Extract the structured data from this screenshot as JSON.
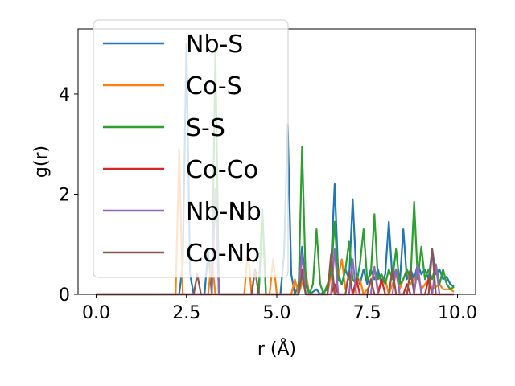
{
  "chart_data": {
    "type": "line",
    "xlabel": "r (Å)",
    "ylabel": "g(r)",
    "xlim": [
      -0.5,
      10.5
    ],
    "ylim": [
      0,
      5.3
    ],
    "xticks": [
      0.0,
      2.5,
      5.0,
      7.5,
      10.0
    ],
    "xtick_labels": [
      "0.0",
      "2.5",
      "5.0",
      "7.5",
      "10.0"
    ],
    "yticks": [
      0,
      2,
      4
    ],
    "ytick_labels": [
      "0",
      "2",
      "4"
    ],
    "grid": false,
    "legend_position": "top-left",
    "series": [
      {
        "name": "Nb-S",
        "color": "#1f77b4",
        "points": [
          [
            0,
            0
          ],
          [
            2.3,
            0
          ],
          [
            2.4,
            0.6
          ],
          [
            2.5,
            5.0
          ],
          [
            2.6,
            0.4
          ],
          [
            2.7,
            0
          ],
          [
            3.0,
            0
          ],
          [
            3.1,
            0.9
          ],
          [
            3.2,
            0
          ],
          [
            3.3,
            2.1
          ],
          [
            3.4,
            0
          ],
          [
            4.3,
            0
          ],
          [
            4.4,
            0.5
          ],
          [
            4.5,
            0
          ],
          [
            4.6,
            1.7
          ],
          [
            4.7,
            0
          ],
          [
            5.1,
            0
          ],
          [
            5.2,
            0.8
          ],
          [
            5.3,
            3.4
          ],
          [
            5.4,
            0.4
          ],
          [
            5.5,
            0
          ],
          [
            5.6,
            0.2
          ],
          [
            5.7,
            0.95
          ],
          [
            5.8,
            0.2
          ],
          [
            5.9,
            0
          ],
          [
            6.1,
            0.1
          ],
          [
            6.2,
            0
          ],
          [
            6.4,
            0.1
          ],
          [
            6.5,
            0.6
          ],
          [
            6.6,
            2.2
          ],
          [
            6.7,
            0.4
          ],
          [
            6.8,
            0.2
          ],
          [
            6.9,
            0.5
          ],
          [
            7.0,
            0.3
          ],
          [
            7.1,
            1.9
          ],
          [
            7.2,
            0.4
          ],
          [
            7.3,
            0.2
          ],
          [
            7.4,
            0.5
          ],
          [
            7.5,
            0.2
          ],
          [
            7.6,
            0.5
          ],
          [
            7.7,
            0.3
          ],
          [
            7.8,
            0.5
          ],
          [
            7.9,
            0.2
          ],
          [
            8.0,
            0.4
          ],
          [
            8.1,
            1.45
          ],
          [
            8.2,
            0.3
          ],
          [
            8.3,
            0.5
          ],
          [
            8.4,
            0.2
          ],
          [
            8.5,
            1.3
          ],
          [
            8.6,
            0.3
          ],
          [
            8.7,
            0.5
          ],
          [
            8.8,
            0.3
          ],
          [
            8.9,
            0.6
          ],
          [
            9.0,
            0.4
          ],
          [
            9.1,
            0.5
          ],
          [
            9.2,
            0.3
          ],
          [
            9.3,
            0.9
          ],
          [
            9.4,
            0.4
          ],
          [
            9.5,
            0.5
          ],
          [
            9.6,
            0.3
          ],
          [
            9.7,
            0.35
          ],
          [
            9.8,
            0.2
          ],
          [
            9.9,
            0.15
          ]
        ]
      },
      {
        "name": "Co-S",
        "color": "#ff7f0e",
        "points": [
          [
            0,
            0
          ],
          [
            2.2,
            0
          ],
          [
            2.3,
            2.9
          ],
          [
            2.4,
            0
          ],
          [
            3.1,
            0
          ],
          [
            3.2,
            0.7
          ],
          [
            3.3,
            0
          ],
          [
            4.1,
            0
          ],
          [
            4.2,
            0.9
          ],
          [
            4.3,
            0
          ],
          [
            4.8,
            0
          ],
          [
            4.9,
            0.7
          ],
          [
            5.0,
            0
          ],
          [
            5.4,
            0
          ],
          [
            5.5,
            0.3
          ],
          [
            5.6,
            0
          ],
          [
            5.8,
            0.45
          ],
          [
            5.9,
            0
          ],
          [
            6.4,
            0
          ],
          [
            6.5,
            0.4
          ],
          [
            6.6,
            0
          ],
          [
            6.8,
            0.7
          ],
          [
            6.9,
            0.1
          ],
          [
            7.0,
            0.4
          ],
          [
            7.1,
            0
          ],
          [
            7.3,
            0.3
          ],
          [
            7.4,
            0
          ],
          [
            7.6,
            0.2
          ],
          [
            7.7,
            0.5
          ],
          [
            7.8,
            0.1
          ],
          [
            8.0,
            0.3
          ],
          [
            8.1,
            0
          ],
          [
            8.3,
            0.4
          ],
          [
            8.4,
            0.1
          ],
          [
            8.6,
            0.5
          ],
          [
            8.7,
            0.2
          ],
          [
            8.9,
            0.4
          ],
          [
            9.0,
            0.1
          ],
          [
            9.2,
            0.3
          ],
          [
            9.3,
            0.1
          ],
          [
            9.5,
            0.2
          ],
          [
            9.6,
            0.1
          ],
          [
            9.8,
            0.1
          ],
          [
            9.9,
            0.05
          ]
        ]
      },
      {
        "name": "S-S",
        "color": "#2ca02c",
        "points": [
          [
            0,
            0
          ],
          [
            3.2,
            0
          ],
          [
            3.3,
            4.9
          ],
          [
            3.4,
            0
          ],
          [
            4.5,
            0
          ],
          [
            4.6,
            1.6
          ],
          [
            4.7,
            0
          ],
          [
            5.6,
            0
          ],
          [
            5.7,
            2.95
          ],
          [
            5.8,
            0.3
          ],
          [
            5.9,
            0
          ],
          [
            6.0,
            0.2
          ],
          [
            6.1,
            1.3
          ],
          [
            6.2,
            0.2
          ],
          [
            6.3,
            0
          ],
          [
            6.5,
            0.4
          ],
          [
            6.6,
            1.45
          ],
          [
            6.7,
            0.3
          ],
          [
            6.8,
            0.2
          ],
          [
            6.9,
            0.5
          ],
          [
            7.0,
            1.05
          ],
          [
            7.1,
            0.3
          ],
          [
            7.2,
            0.2
          ],
          [
            7.3,
            0.6
          ],
          [
            7.4,
            1.3
          ],
          [
            7.5,
            0.3
          ],
          [
            7.6,
            0.4
          ],
          [
            7.7,
            1.6
          ],
          [
            7.8,
            0.3
          ],
          [
            7.9,
            0.4
          ],
          [
            8.0,
            0.2
          ],
          [
            8.1,
            0.5
          ],
          [
            8.2,
            0.3
          ],
          [
            8.3,
            0.9
          ],
          [
            8.4,
            0.2
          ],
          [
            8.5,
            0.3
          ],
          [
            8.6,
            0.5
          ],
          [
            8.7,
            0.3
          ],
          [
            8.8,
            1.85
          ],
          [
            8.9,
            0.3
          ],
          [
            9.0,
            0.95
          ],
          [
            9.1,
            0.3
          ],
          [
            9.2,
            0.5
          ],
          [
            9.3,
            0.3
          ],
          [
            9.4,
            0.6
          ],
          [
            9.5,
            0.2
          ],
          [
            9.6,
            0.5
          ],
          [
            9.7,
            0.2
          ],
          [
            9.8,
            0.1
          ],
          [
            9.9,
            0.15
          ]
        ]
      },
      {
        "name": "Co-Co",
        "color": "#d62728",
        "points": [
          [
            0,
            0
          ],
          [
            5.6,
            0
          ],
          [
            5.7,
            0.5
          ],
          [
            5.8,
            0
          ],
          [
            6.5,
            0
          ],
          [
            6.6,
            0.2
          ],
          [
            6.7,
            0
          ],
          [
            7.1,
            0
          ],
          [
            7.2,
            0.3
          ],
          [
            7.3,
            0
          ],
          [
            7.8,
            0
          ],
          [
            7.9,
            0.3
          ],
          [
            8.0,
            0
          ],
          [
            8.5,
            0
          ],
          [
            8.6,
            0.2
          ],
          [
            8.7,
            0
          ],
          [
            9.1,
            0
          ],
          [
            9.2,
            0.3
          ],
          [
            9.3,
            0
          ],
          [
            9.9,
            0
          ]
        ]
      },
      {
        "name": "Nb-Nb",
        "color": "#9467bd",
        "points": [
          [
            0,
            0
          ],
          [
            3.2,
            0
          ],
          [
            3.3,
            2.1
          ],
          [
            3.4,
            0
          ],
          [
            5.6,
            0
          ],
          [
            5.7,
            0.8
          ],
          [
            5.8,
            0
          ],
          [
            6.5,
            0
          ],
          [
            6.6,
            0.9
          ],
          [
            6.7,
            0
          ],
          [
            7.0,
            0
          ],
          [
            7.1,
            0.7
          ],
          [
            7.2,
            0
          ],
          [
            7.6,
            0
          ],
          [
            7.7,
            0.55
          ],
          [
            7.8,
            0
          ],
          [
            8.2,
            0
          ],
          [
            8.3,
            0.5
          ],
          [
            8.4,
            0
          ],
          [
            8.8,
            0
          ],
          [
            8.9,
            0.6
          ],
          [
            9.0,
            0
          ],
          [
            9.3,
            0
          ],
          [
            9.4,
            0.6
          ],
          [
            9.5,
            0
          ],
          [
            9.9,
            0
          ]
        ]
      },
      {
        "name": "Co-Nb",
        "color": "#8c564b",
        "points": [
          [
            0,
            0
          ],
          [
            2.7,
            0
          ],
          [
            2.8,
            0.4
          ],
          [
            2.9,
            0
          ],
          [
            4.3,
            0
          ],
          [
            4.4,
            0.5
          ],
          [
            4.5,
            0
          ],
          [
            5.6,
            0
          ],
          [
            5.7,
            0.4
          ],
          [
            5.8,
            0
          ],
          [
            6.4,
            0
          ],
          [
            6.5,
            0.8
          ],
          [
            6.6,
            0
          ],
          [
            6.9,
            0
          ],
          [
            7.0,
            0.45
          ],
          [
            7.1,
            0
          ],
          [
            7.5,
            0
          ],
          [
            7.6,
            0.3
          ],
          [
            7.7,
            0
          ],
          [
            8.1,
            0
          ],
          [
            8.2,
            0.5
          ],
          [
            8.3,
            0
          ],
          [
            8.6,
            0
          ],
          [
            8.7,
            0.5
          ],
          [
            8.8,
            0
          ],
          [
            9.2,
            0
          ],
          [
            9.3,
            0.9
          ],
          [
            9.4,
            0
          ],
          [
            9.9,
            0
          ]
        ]
      }
    ]
  }
}
